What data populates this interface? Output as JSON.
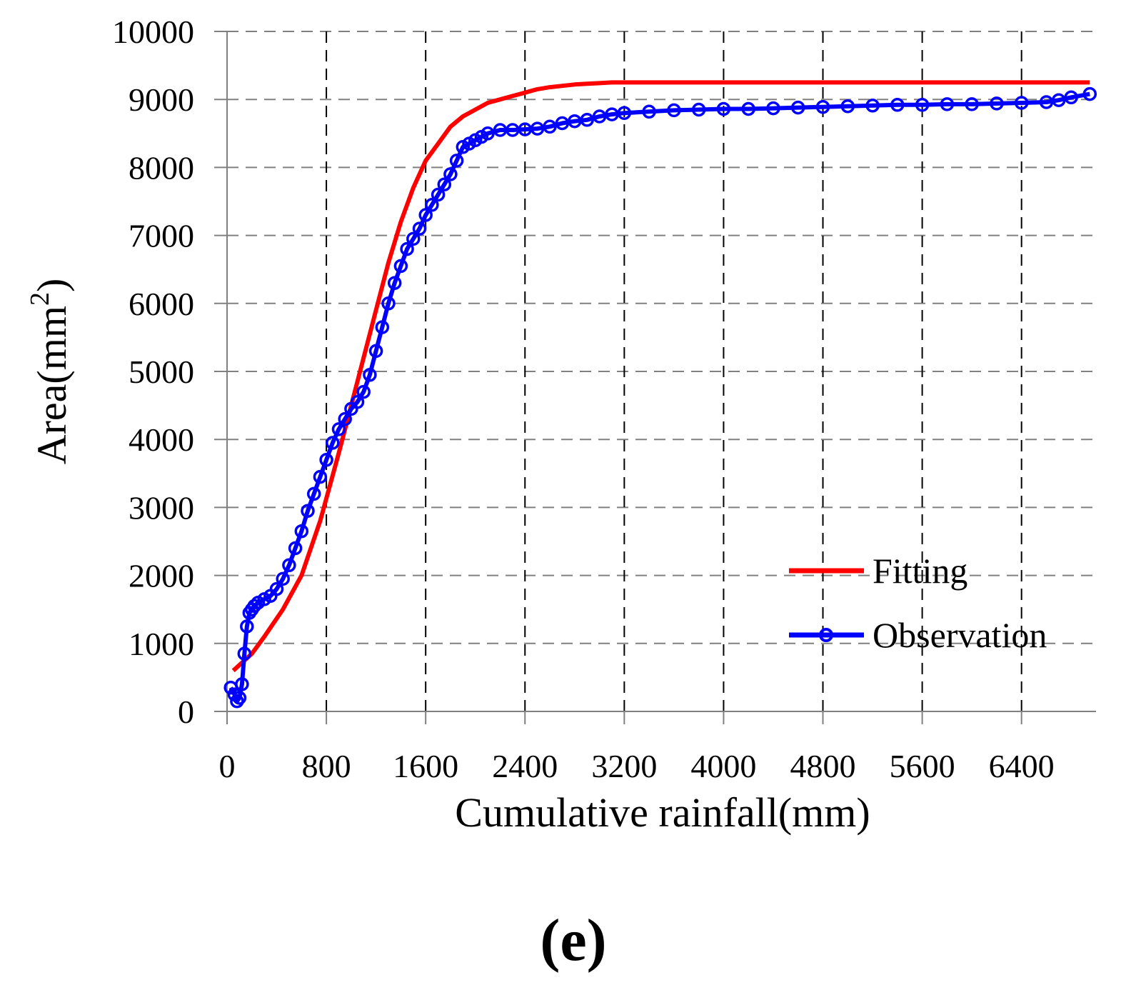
{
  "chart_data": {
    "type": "line",
    "xlabel": "Cumulative rainfall(mm)",
    "ylabel": "Area(mm",
    "ylabel_superscript": "2",
    "ylabel_suffix": ")",
    "panel_label": "(e)",
    "xlim": [
      0,
      7000
    ],
    "ylim": [
      0,
      10000
    ],
    "x_ticks": [
      0,
      800,
      1600,
      2400,
      3200,
      4000,
      4800,
      5600,
      6400
    ],
    "x_tick_labels": [
      "0",
      "800",
      "1600",
      "2400",
      "3200",
      "4000",
      "4800",
      "5600",
      "6400"
    ],
    "y_ticks": [
      0,
      1000,
      2000,
      3000,
      4000,
      5000,
      6000,
      7000,
      8000,
      9000,
      10000
    ],
    "y_tick_labels": [
      "0",
      "1000",
      "2000",
      "3000",
      "4000",
      "5000",
      "6000",
      "7000",
      "8000",
      "9000",
      "10000"
    ],
    "grid": true,
    "legend_position": "bottom-right",
    "series": [
      {
        "name": "Fitting",
        "color": "#ff0000",
        "marker": "none",
        "x": [
          50,
          200,
          300,
          450,
          600,
          750,
          900,
          1000,
          1100,
          1200,
          1300,
          1400,
          1500,
          1600,
          1700,
          1800,
          1900,
          2000,
          2100,
          2200,
          2300,
          2400,
          2500,
          2600,
          2700,
          2800,
          2900,
          3000,
          3100,
          3500,
          4000,
          5000,
          6000,
          6950
        ],
        "y": [
          600,
          850,
          1100,
          1500,
          2000,
          2800,
          3800,
          4500,
          5200,
          5900,
          6600,
          7200,
          7700,
          8100,
          8350,
          8600,
          8750,
          8850,
          8950,
          9000,
          9050,
          9100,
          9150,
          9180,
          9200,
          9220,
          9230,
          9240,
          9250,
          9250,
          9250,
          9250,
          9250,
          9250
        ]
      },
      {
        "name": "Observation",
        "color": "#0000ff",
        "marker": "circle",
        "x": [
          30,
          60,
          80,
          100,
          120,
          140,
          160,
          180,
          200,
          220,
          250,
          300,
          350,
          400,
          450,
          500,
          550,
          600,
          650,
          700,
          750,
          800,
          850,
          900,
          950,
          1000,
          1050,
          1100,
          1150,
          1200,
          1250,
          1300,
          1350,
          1400,
          1450,
          1500,
          1550,
          1600,
          1650,
          1700,
          1750,
          1800,
          1850,
          1900,
          1950,
          2000,
          2050,
          2100,
          2200,
          2300,
          2400,
          2500,
          2600,
          2700,
          2800,
          2900,
          3000,
          3100,
          3200,
          3400,
          3600,
          3800,
          4000,
          4200,
          4400,
          4600,
          4800,
          5000,
          5200,
          5400,
          5600,
          5800,
          6000,
          6200,
          6400,
          6600,
          6700,
          6800,
          6950
        ],
        "y": [
          350,
          250,
          150,
          200,
          400,
          850,
          1250,
          1450,
          1500,
          1550,
          1600,
          1650,
          1700,
          1800,
          1950,
          2150,
          2400,
          2650,
          2950,
          3200,
          3450,
          3700,
          3950,
          4150,
          4300,
          4450,
          4550,
          4700,
          4950,
          5300,
          5650,
          6000,
          6300,
          6550,
          6800,
          6950,
          7100,
          7300,
          7450,
          7600,
          7750,
          7900,
          8100,
          8300,
          8350,
          8400,
          8450,
          8500,
          8550,
          8550,
          8560,
          8570,
          8600,
          8650,
          8680,
          8700,
          8750,
          8780,
          8800,
          8820,
          8840,
          8850,
          8860,
          8860,
          8870,
          8880,
          8890,
          8900,
          8910,
          8920,
          8920,
          8930,
          8930,
          8940,
          8950,
          8960,
          8990,
          9030,
          9080
        ]
      }
    ]
  }
}
